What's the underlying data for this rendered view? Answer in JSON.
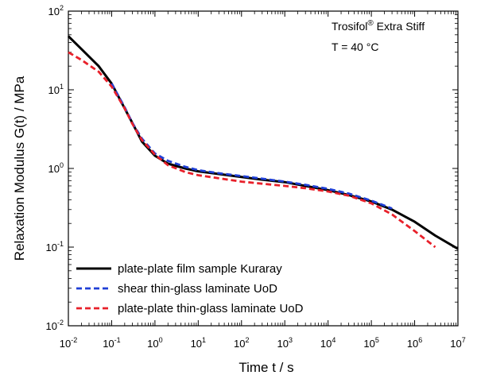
{
  "chart_data": {
    "type": "line",
    "xlabel": "Time t / s",
    "ylabel": "Relaxation Modulus G(t) / MPa",
    "xscale": "log",
    "yscale": "log",
    "xlim": [
      0.01,
      10000000
    ],
    "ylim": [
      0.01,
      100
    ],
    "x_ticks": [
      {
        "base": "10",
        "exp": "-2"
      },
      {
        "base": "10",
        "exp": "-1"
      },
      {
        "base": "10",
        "exp": "0"
      },
      {
        "base": "10",
        "exp": "1"
      },
      {
        "base": "10",
        "exp": "2"
      },
      {
        "base": "10",
        "exp": "3"
      },
      {
        "base": "10",
        "exp": "4"
      },
      {
        "base": "10",
        "exp": "5"
      },
      {
        "base": "10",
        "exp": "6"
      },
      {
        "base": "10",
        "exp": "7"
      }
    ],
    "y_ticks": [
      {
        "base": "10",
        "exp": "-2"
      },
      {
        "base": "10",
        "exp": "-1"
      },
      {
        "base": "10",
        "exp": "0"
      },
      {
        "base": "10",
        "exp": "1"
      },
      {
        "base": "10",
        "exp": "2"
      }
    ],
    "annotations": {
      "material_name": "Trosifol",
      "material_mark": "®",
      "material_suffix": " Extra Stiff",
      "temperature": "T = 40 °C"
    },
    "legend_position": "bottom-left",
    "grid": false,
    "series": [
      {
        "name": "plate-plate film sample Kuraray",
        "color": "#000000",
        "dash": "solid",
        "x": [
          0.01,
          0.02,
          0.05,
          0.1,
          0.2,
          0.3,
          0.5,
          1,
          2,
          5,
          10,
          30,
          100,
          300,
          1000,
          3000,
          10000,
          30000,
          100000,
          300000,
          1000000,
          3000000,
          10000000
        ],
        "y": [
          48,
          33,
          20,
          12,
          5.8,
          3.8,
          2.2,
          1.45,
          1.15,
          1.0,
          0.92,
          0.85,
          0.78,
          0.72,
          0.67,
          0.6,
          0.53,
          0.46,
          0.38,
          0.3,
          0.21,
          0.14,
          0.095
        ]
      },
      {
        "name": "shear thin-glass laminate UoD",
        "color": "#1f3fd6",
        "dash": "dash",
        "x": [
          0.1,
          0.2,
          0.3,
          0.5,
          1,
          2,
          5,
          10,
          30,
          100,
          300,
          1000,
          3000,
          10000,
          30000,
          100000,
          300000
        ],
        "y": [
          12,
          6.0,
          3.8,
          2.4,
          1.55,
          1.25,
          1.05,
          0.95,
          0.87,
          0.8,
          0.74,
          0.68,
          0.62,
          0.55,
          0.48,
          0.39,
          0.31
        ]
      },
      {
        "name": "plate-plate thin-glass laminate UoD",
        "color": "#e8202a",
        "dash": "dash",
        "x": [
          0.01,
          0.02,
          0.05,
          0.1,
          0.2,
          0.3,
          0.5,
          1,
          2,
          5,
          10,
          30,
          100,
          300,
          1000,
          3000,
          10000,
          30000,
          100000,
          300000,
          1000000,
          3000000
        ],
        "y": [
          30,
          24,
          17,
          11,
          5.8,
          3.7,
          2.3,
          1.5,
          1.1,
          0.9,
          0.82,
          0.75,
          0.68,
          0.64,
          0.6,
          0.56,
          0.51,
          0.45,
          0.36,
          0.26,
          0.16,
          0.1
        ]
      }
    ]
  }
}
